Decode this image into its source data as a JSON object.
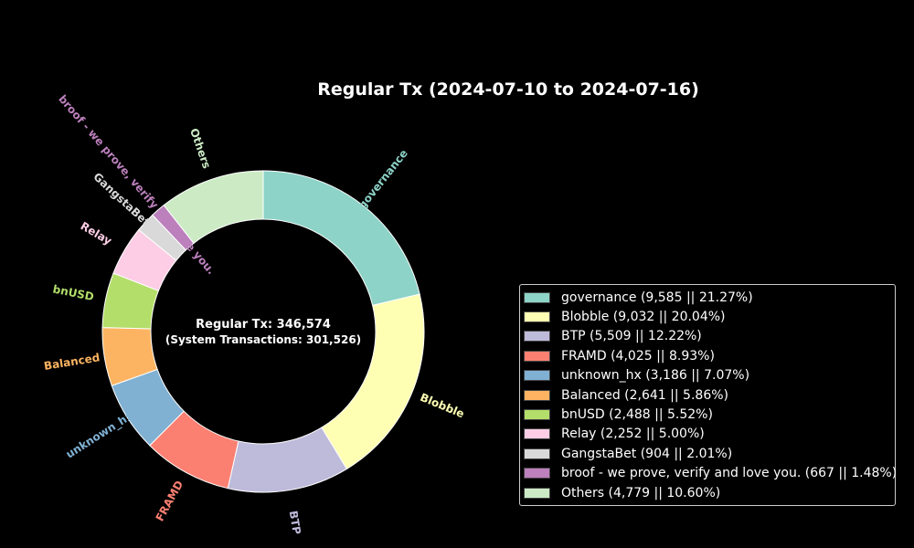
{
  "chart_data": {
    "type": "pie",
    "title": "Regular Tx (2024-07-10 to 2024-07-16)",
    "center_text": "Regular Tx: 346,574",
    "center_subtext": "(System Transactions: 301,526)",
    "legend_placement": "right",
    "slices": [
      {
        "label": "governance",
        "value": 9585,
        "percent": 21.27,
        "color": "#8dd3c7",
        "legend": "governance (9,585 || 21.27%)"
      },
      {
        "label": "Blobble",
        "value": 9032,
        "percent": 20.04,
        "color": "#ffffb3",
        "legend": "Blobble (9,032 || 20.04%)"
      },
      {
        "label": "BTP",
        "value": 5509,
        "percent": 12.22,
        "color": "#bebada",
        "legend": "BTP (5,509 || 12.22%)"
      },
      {
        "label": "FRAMD",
        "value": 4025,
        "percent": 8.93,
        "color": "#fb8072",
        "legend": "FRAMD (4,025 || 8.93%)"
      },
      {
        "label": "unknown_hx",
        "value": 3186,
        "percent": 7.07,
        "color": "#80b1d3",
        "legend": "unknown_hx (3,186 || 7.07%)"
      },
      {
        "label": "Balanced",
        "value": 2641,
        "percent": 5.86,
        "color": "#fdb462",
        "legend": "Balanced (2,641 || 5.86%)"
      },
      {
        "label": "bnUSD",
        "value": 2488,
        "percent": 5.52,
        "color": "#b3de69",
        "legend": "bnUSD (2,488 || 5.52%)"
      },
      {
        "label": "Relay",
        "value": 2252,
        "percent": 5.0,
        "color": "#fccde5",
        "legend": "Relay (2,252 || 5.00%)"
      },
      {
        "label": "GangstaBet",
        "value": 904,
        "percent": 2.01,
        "color": "#d9d9d9",
        "legend": "GangstaBet (904 || 2.01%)"
      },
      {
        "label": "broof - we prove, verify and love you.",
        "value": 667,
        "percent": 1.48,
        "color": "#bc80bd",
        "legend": "broof - we prove, verify and love you. (667 || 1.48%)"
      },
      {
        "label": "Others",
        "value": 4779,
        "percent": 10.6,
        "color": "#ccebc5",
        "legend": "Others (4,779 || 10.60%)"
      }
    ]
  }
}
